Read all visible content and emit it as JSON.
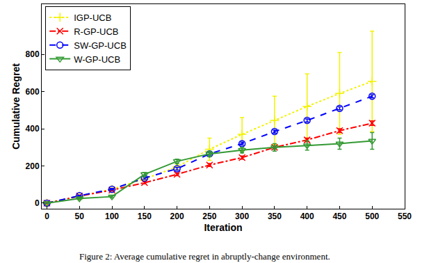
{
  "chart_data": {
    "type": "line",
    "caption": "Figure 2: Average cumulative regret in abruptly-change environment.",
    "x_label": "Iteration",
    "y_label": "Cumulative Regret",
    "x": [
      0,
      50,
      100,
      150,
      200,
      250,
      300,
      350,
      400,
      450,
      500
    ],
    "series": [
      {
        "name": "IGP-UCB",
        "color": "#f2f200",
        "marker": "plus",
        "line_style": "dot",
        "values": [
          0,
          38,
          75,
          130,
          195,
          290,
          370,
          445,
          520,
          590,
          655
        ],
        "error": [
          0,
          3,
          5,
          8,
          15,
          60,
          90,
          130,
          175,
          220,
          270
        ]
      },
      {
        "name": "R-GP-UCB",
        "color": "#ff0000",
        "marker": "x",
        "line_style": "dashdot",
        "values": [
          0,
          38,
          70,
          110,
          155,
          205,
          245,
          300,
          340,
          390,
          430
        ],
        "error": [
          0,
          3,
          4,
          6,
          7,
          8,
          8,
          9,
          10,
          10,
          12
        ]
      },
      {
        "name": "SW-GP-UCB",
        "color": "#0000ff",
        "marker": "circle",
        "line_style": "dash",
        "values": [
          0,
          40,
          75,
          135,
          185,
          265,
          320,
          385,
          445,
          510,
          575
        ],
        "error": [
          0,
          3,
          4,
          6,
          7,
          8,
          8,
          8,
          8,
          8,
          8
        ]
      },
      {
        "name": "W-GP-UCB",
        "color": "#339933",
        "marker": "triangle-down",
        "line_style": "solid",
        "values": [
          0,
          25,
          35,
          155,
          225,
          265,
          285,
          300,
          310,
          320,
          335
        ],
        "error": [
          0,
          5,
          6,
          10,
          12,
          15,
          15,
          20,
          25,
          30,
          45
        ]
      }
    ],
    "xlim": [
      -8,
      550
    ],
    "xticks": [
      0,
      50,
      100,
      150,
      200,
      250,
      300,
      350,
      400,
      450,
      500,
      550
    ],
    "ylim": [
      -30,
      1070
    ],
    "yticks": [
      0,
      200,
      400,
      600,
      800
    ],
    "grid": false,
    "legend": "upper left"
  }
}
